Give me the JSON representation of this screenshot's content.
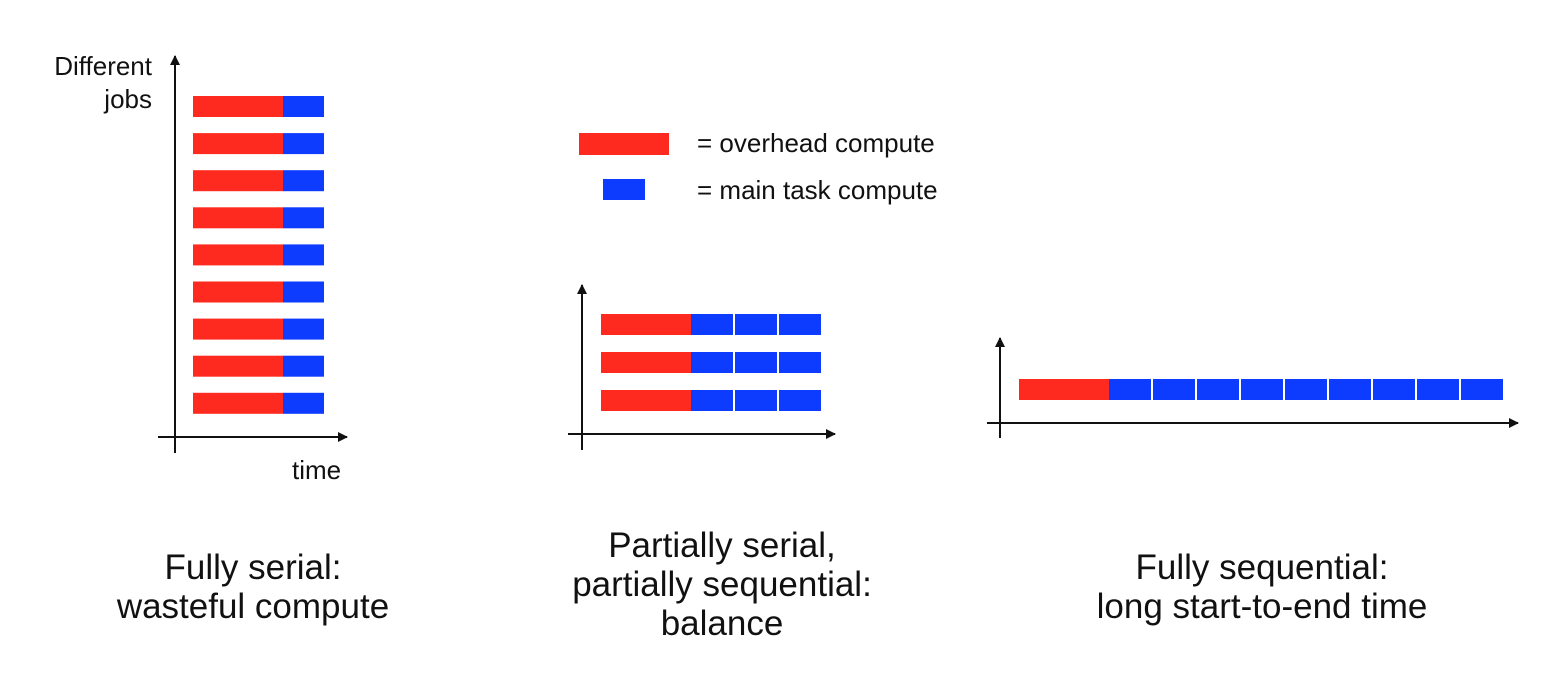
{
  "colors": {
    "overhead": "#ff2a1f",
    "main_task": "#0e3cff",
    "axis": "#111111"
  },
  "legend": {
    "overhead_label": "= overhead compute",
    "main_task_label": "= main task compute"
  },
  "panels": [
    {
      "id": "fully-serial",
      "y_axis_label": [
        "Different",
        "jobs"
      ],
      "x_axis_label": "time",
      "rows": 9,
      "overhead_units": 1,
      "main_task_units": 1,
      "caption": [
        "Fully serial:",
        "wasteful compute"
      ]
    },
    {
      "id": "partially-serial",
      "y_axis_label": [],
      "x_axis_label": "",
      "rows": 3,
      "overhead_units": 1,
      "main_task_units": 3,
      "caption": [
        "Partially serial,",
        "partially sequential:",
        "balance"
      ]
    },
    {
      "id": "fully-sequential",
      "y_axis_label": [],
      "x_axis_label": "",
      "rows": 1,
      "overhead_units": 1,
      "main_task_units": 9,
      "caption": [
        "Fully sequential:",
        "long start-to-end time"
      ]
    }
  ]
}
